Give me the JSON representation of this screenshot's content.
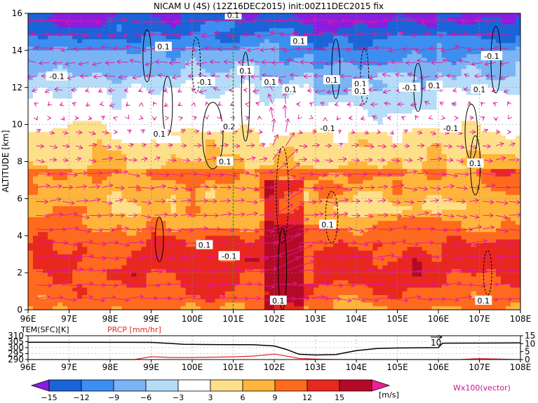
{
  "title": "NICAM U (4S) (12Z16DEC2015) init:00Z11DEC2015 fix",
  "colors": {
    "palette": [
      "#8a1ee0",
      "#1a64d8",
      "#3c8ef0",
      "#7ab4f4",
      "#b6dcf8",
      "#ffffff",
      "#ffe08a",
      "#ffb43c",
      "#ff6a1e",
      "#e8281e",
      "#b40a28",
      "#f01e96"
    ],
    "vector": "#e6149c",
    "green_line": "#22aa22",
    "precip": "#e02828",
    "temp": "#000000"
  },
  "chart_data": [
    {
      "type": "heatmap",
      "name": "cross-section",
      "ylabel": "ALTITUDE [km]",
      "xlabel": "",
      "x_ticks": [
        "96E",
        "97E",
        "98E",
        "99E",
        "100E",
        "101E",
        "102E",
        "103E",
        "104E",
        "105E",
        "106E",
        "107E",
        "108E"
      ],
      "y_ticks": [
        "0",
        "2",
        "4",
        "6",
        "8",
        "10",
        "12",
        "14",
        "16"
      ],
      "xlim": [
        96,
        108
      ],
      "ylim": [
        0,
        16
      ],
      "grid": true,
      "marker_longitude": 101,
      "contour_labels": [
        {
          "text": "0.1",
          "x": 101.0,
          "y": 15.9
        },
        {
          "text": "0.1",
          "x": 99.3,
          "y": 14.2
        },
        {
          "text": "0.1",
          "x": 102.6,
          "y": 14.5
        },
        {
          "text": "-0.1",
          "x": 107.3,
          "y": 13.7
        },
        {
          "text": "-0.1",
          "x": 96.7,
          "y": 12.6
        },
        {
          "text": "0.1",
          "x": 101.3,
          "y": 12.9
        },
        {
          "text": "-0.1",
          "x": 100.3,
          "y": 12.3
        },
        {
          "text": "0.1",
          "x": 101.9,
          "y": 12.3
        },
        {
          "text": "0.1",
          "x": 102.4,
          "y": 11.9
        },
        {
          "text": "0.1",
          "x": 103.4,
          "y": 12.4
        },
        {
          "text": "0.1",
          "x": 104.1,
          "y": 12.2
        },
        {
          "text": "0.1",
          "x": 104.1,
          "y": 11.8
        },
        {
          "text": "-0.1",
          "x": 105.3,
          "y": 12.0
        },
        {
          "text": "0.1",
          "x": 105.9,
          "y": 12.1
        },
        {
          "text": "0.1",
          "x": 107.0,
          "y": 11.9
        },
        {
          "text": "0.1",
          "x": 99.2,
          "y": 9.5
        },
        {
          "text": "-0.1",
          "x": 103.3,
          "y": 9.8
        },
        {
          "text": "-0.1",
          "x": 106.3,
          "y": 9.8
        },
        {
          "text": "0.2",
          "x": 100.9,
          "y": 9.9
        },
        {
          "text": "0.1",
          "x": 100.8,
          "y": 8.0
        },
        {
          "text": "0.1",
          "x": 106.9,
          "y": 7.9
        },
        {
          "text": "0.1",
          "x": 103.3,
          "y": 4.6
        },
        {
          "text": "0.1",
          "x": 100.3,
          "y": 3.5
        },
        {
          "text": "-0.1",
          "x": 100.9,
          "y": 2.9
        },
        {
          "text": "0.1",
          "x": 102.1,
          "y": 0.5
        },
        {
          "text": "0.1",
          "x": 107.1,
          "y": 0.5
        }
      ]
    },
    {
      "type": "line",
      "name": "surface",
      "label_left": "TEM(SFC)[K]",
      "label_right": "PRCP [mm/hr]",
      "y_ticks_left": [
        "310",
        "305",
        "300",
        "295",
        "290"
      ],
      "y_ticks_right": [
        "15",
        "10",
        "5",
        "0"
      ],
      "ylim_left": [
        290,
        310
      ],
      "ylim_right": [
        0,
        15
      ],
      "annotation": "10",
      "series": [
        {
          "name": "TEM(SFC)",
          "x": [
            96,
            97,
            98,
            99,
            99.8,
            100.5,
            101,
            101.5,
            102,
            102.3,
            102.6,
            103,
            103.5,
            104,
            104.5,
            105,
            105.5,
            106,
            106.1,
            107,
            108
          ],
          "y": [
            304.5,
            304.5,
            304.5,
            304.4,
            302.8,
            302.6,
            302.5,
            302.4,
            301.4,
            298.5,
            294.5,
            293.8,
            294.2,
            297.5,
            299.3,
            299.7,
            299.9,
            300,
            303.7,
            303.8,
            304
          ]
        },
        {
          "name": "PRCP",
          "x": [
            96,
            98.6,
            99,
            99.5,
            100,
            100.5,
            101,
            101.5,
            102,
            102.3,
            102.6,
            103,
            103.5,
            104,
            106.5,
            107,
            108
          ],
          "y": [
            0,
            0,
            1.8,
            1.3,
            1.3,
            1.5,
            1.7,
            2.2,
            3.4,
            2.2,
            0.7,
            0.3,
            0.1,
            0,
            0,
            0.6,
            0
          ]
        }
      ]
    },
    {
      "type": "colorbar",
      "name": "legend",
      "ticks": [
        "−15",
        "−12",
        "−9",
        "−6",
        "−3",
        "3",
        "6",
        "9",
        "12",
        "15"
      ],
      "unit": "[m/s]",
      "vector_label": "Wx100(vector)"
    }
  ]
}
